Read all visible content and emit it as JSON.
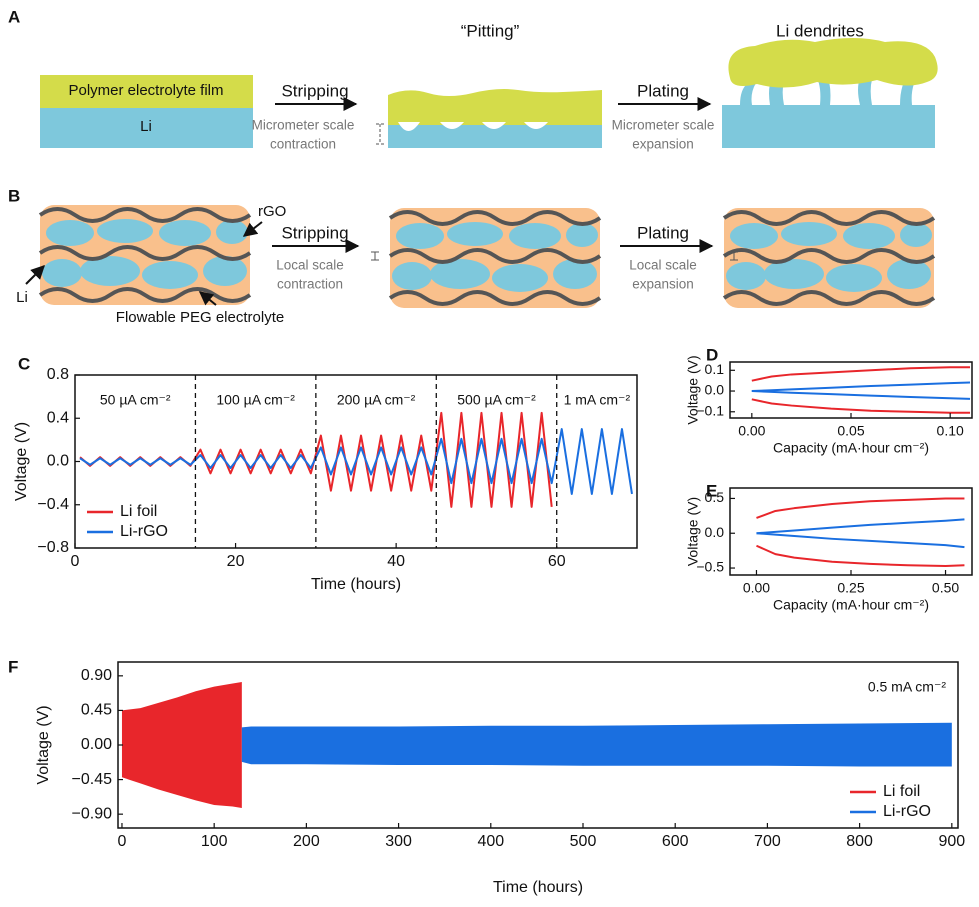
{
  "diagram": {
    "panel_a": {
      "label": "A",
      "film": "Polymer electrolyte film",
      "li": "Li",
      "stripping": "Stripping",
      "contraction": [
        "Micrometer scale",
        "contraction"
      ],
      "pitting": "“Pitting”",
      "plating": "Plating",
      "expansion": [
        "Micrometer scale",
        "expansion"
      ],
      "dendrites": "Li dendrites"
    },
    "panel_b": {
      "label": "B",
      "rgo": "rGO",
      "li": "Li",
      "peg": "Flowable PEG electrolyte",
      "stripping": "Stripping",
      "contraction": [
        "Local scale",
        "contraction"
      ],
      "plating": "Plating",
      "expansion": [
        "Local scale",
        "expansion"
      ]
    }
  },
  "chart_data": [
    {
      "type": "line",
      "panel": "C",
      "xlabel": "Time (hours)",
      "ylabel": "Voltage (V)",
      "xlim": [
        0,
        70
      ],
      "xticks": [
        0,
        20,
        40,
        60
      ],
      "ylim": [
        -0.8,
        0.8
      ],
      "yticks": [
        {
          "value": -0.8,
          "label": "−0.8"
        },
        {
          "value": -0.4,
          "label": "−0.4"
        },
        {
          "value": 0,
          "label": "0.0"
        },
        0.4,
        0.8
      ],
      "dividers": [
        15,
        30,
        45,
        60
      ],
      "annotations": [
        "50 µA cm⁻²",
        "100 µA cm⁻²",
        "200 µA cm⁻²",
        "500 µA cm⁻²",
        "1 mA cm⁻²"
      ],
      "legend": "lower left",
      "x": [
        0.625,
        1.875,
        3.125,
        4.375,
        5.625,
        6.875,
        8.125,
        9.375,
        10.625,
        11.875,
        13.125,
        14.375,
        15.625,
        16.875,
        18.125,
        19.375,
        20.625,
        21.875,
        23.125,
        24.375,
        25.625,
        26.875,
        28.125,
        29.375,
        30.625,
        31.875,
        33.125,
        34.375,
        35.625,
        36.875,
        38.125,
        39.375,
        40.625,
        41.875,
        43.125,
        44.375,
        45.625,
        46.875,
        48.125,
        49.375,
        50.625,
        51.875,
        53.125,
        54.375,
        55.625,
        56.875,
        58.125,
        59.375,
        60.625,
        61.875,
        63.125,
        64.375,
        65.625,
        66.875,
        68.125,
        69.375
      ],
      "series": [
        {
          "name": "Li foil",
          "color": "#e8262b",
          "values": [
            0.04,
            -0.04,
            0.04,
            -0.04,
            0.04,
            -0.04,
            0.04,
            -0.04,
            0.04,
            -0.04,
            0.04,
            -0.04,
            0.11,
            -0.11,
            0.11,
            -0.11,
            0.11,
            -0.11,
            0.11,
            -0.11,
            0.11,
            -0.11,
            0.11,
            -0.11,
            0.24,
            -0.27,
            0.24,
            -0.27,
            0.24,
            -0.27,
            0.24,
            -0.27,
            0.24,
            -0.27,
            0.24,
            -0.27,
            0.45,
            -0.42,
            0.45,
            -0.42,
            0.45,
            -0.42,
            0.45,
            -0.42,
            0.45,
            -0.42,
            0.45,
            -0.42,
            null,
            null,
            null,
            null,
            null,
            null,
            null,
            null
          ]
        },
        {
          "name": "Li-rGO",
          "color": "#1a6fe0",
          "values": [
            0.03,
            -0.03,
            0.03,
            -0.03,
            0.03,
            -0.03,
            0.03,
            -0.03,
            0.03,
            -0.03,
            0.03,
            -0.03,
            0.06,
            -0.06,
            0.06,
            -0.06,
            0.06,
            -0.06,
            0.06,
            -0.06,
            0.06,
            -0.06,
            0.06,
            -0.06,
            0.13,
            -0.12,
            0.13,
            -0.12,
            0.13,
            -0.12,
            0.13,
            -0.12,
            0.13,
            -0.12,
            0.13,
            -0.12,
            0.21,
            -0.2,
            0.21,
            -0.2,
            0.21,
            -0.2,
            0.21,
            -0.2,
            0.21,
            -0.2,
            0.21,
            -0.2,
            0.3,
            -0.3,
            0.3,
            -0.3,
            0.3,
            -0.3,
            0.3,
            -0.3
          ]
        }
      ]
    },
    {
      "type": "line",
      "panel": "D",
      "xlabel": "Capacity (mA·hour cm⁻²)",
      "ylabel": "Voltage (V)",
      "xlim": [
        -0.011,
        0.111
      ],
      "xticks": [
        {
          "value": 0,
          "label": "0.00"
        },
        {
          "value": 0.05,
          "label": "0.05"
        },
        {
          "value": 0.1,
          "label": "0.10"
        }
      ],
      "ylim": [
        -0.13,
        0.14
      ],
      "yticks": [
        {
          "value": -0.1,
          "label": "−0.1"
        },
        {
          "value": 0,
          "label": "0.0"
        },
        0.1
      ],
      "x": [
        0,
        0.01,
        0.02,
        0.04,
        0.06,
        0.08,
        0.1,
        0.11
      ],
      "series": [
        {
          "color": "#e8262b",
          "values": [
            0.05,
            0.07,
            0.08,
            0.09,
            0.1,
            0.11,
            0.115,
            0.115
          ]
        },
        {
          "color": "#e8262b",
          "values": [
            -0.04,
            -0.06,
            -0.07,
            -0.085,
            -0.095,
            -0.1,
            -0.105,
            -0.105
          ]
        },
        {
          "color": "#1a6fe0",
          "values": [
            0,
            0.004,
            0.008,
            0.016,
            0.024,
            0.031,
            0.038,
            0.041
          ]
        },
        {
          "color": "#1a6fe0",
          "values": [
            0,
            -0.004,
            -0.008,
            -0.015,
            -0.022,
            -0.029,
            -0.035,
            -0.038
          ]
        }
      ]
    },
    {
      "type": "line",
      "panel": "E",
      "xlabel": "Capacity (mA·hour cm⁻²)",
      "ylabel": "Voltage (V)",
      "xlim": [
        -0.07,
        0.57
      ],
      "xticks": [
        {
          "value": 0,
          "label": "0.00"
        },
        {
          "value": 0.25,
          "label": "0.25"
        },
        {
          "value": 0.5,
          "label": "0.50"
        }
      ],
      "ylim": [
        -0.6,
        0.65
      ],
      "yticks": [
        {
          "value": -0.5,
          "label": "−0.5"
        },
        {
          "value": 0,
          "label": "0.0"
        },
        0.5
      ],
      "x": [
        0,
        0.05,
        0.1,
        0.2,
        0.3,
        0.4,
        0.5,
        0.55
      ],
      "series": [
        {
          "color": "#e8262b",
          "values": [
            0.22,
            0.32,
            0.36,
            0.42,
            0.46,
            0.48,
            0.5,
            0.5
          ]
        },
        {
          "color": "#e8262b",
          "values": [
            -0.18,
            -0.3,
            -0.35,
            -0.41,
            -0.44,
            -0.46,
            -0.47,
            -0.46
          ]
        },
        {
          "color": "#1a6fe0",
          "values": [
            0,
            0.02,
            0.04,
            0.08,
            0.12,
            0.15,
            0.18,
            0.2
          ]
        },
        {
          "color": "#1a6fe0",
          "values": [
            0,
            -0.02,
            -0.04,
            -0.08,
            -0.11,
            -0.14,
            -0.17,
            -0.2
          ]
        }
      ]
    },
    {
      "type": "band",
      "panel": "F",
      "xlabel": "Time (hours)",
      "ylabel": "Voltage (V)",
      "xlim": [
        -4.3,
        906.7
      ],
      "xticks": [
        0,
        100,
        200,
        300,
        400,
        500,
        600,
        700,
        800,
        900
      ],
      "ylim": [
        -1.08,
        1.08
      ],
      "yticks": [
        {
          "value": -0.9,
          "label": "−0.90"
        },
        {
          "value": -0.45,
          "label": "−0.45"
        },
        {
          "value": 0,
          "label": "0.00"
        },
        {
          "value": 0.45,
          "label": "0.45"
        },
        {
          "value": 0.9,
          "label": "0.90"
        }
      ],
      "annotations": [
        "0.5 mA cm⁻²"
      ],
      "legend": "lower right",
      "series": [
        {
          "name": "Li foil",
          "color": "#e8262b",
          "x": [
            0,
            20,
            40,
            60,
            80,
            100,
            120,
            130
          ],
          "upper": [
            0.45,
            0.48,
            0.55,
            0.62,
            0.7,
            0.76,
            0.8,
            0.82
          ],
          "lower": [
            -0.42,
            -0.5,
            -0.58,
            -0.65,
            -0.72,
            -0.78,
            -0.8,
            -0.82
          ]
        },
        {
          "name": "Li-rGO",
          "color": "#1a6fe0",
          "x": [
            130,
            140,
            200,
            300,
            400,
            500,
            600,
            700,
            800,
            900
          ],
          "upper": [
            0.23,
            0.24,
            0.24,
            0.24,
            0.25,
            0.25,
            0.26,
            0.27,
            0.28,
            0.29
          ],
          "lower": [
            -0.22,
            -0.25,
            -0.25,
            -0.26,
            -0.26,
            -0.27,
            -0.27,
            -0.27,
            -0.28,
            -0.28
          ]
        }
      ]
    }
  ]
}
